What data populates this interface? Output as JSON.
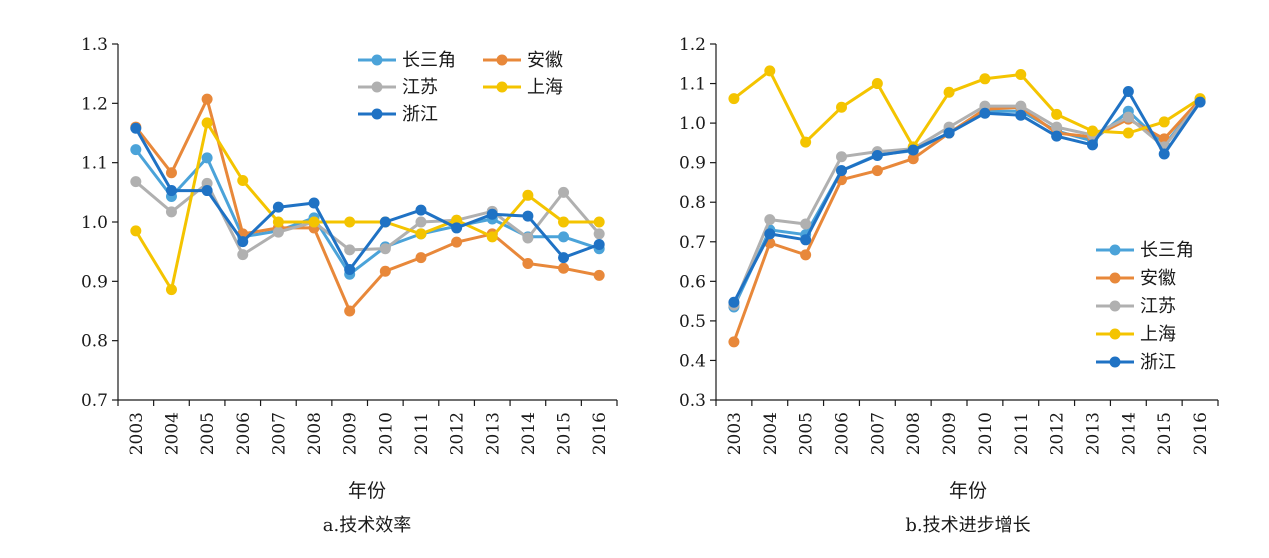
{
  "chart_data": [
    {
      "type": "line",
      "caption": "a.技术效率",
      "xlabel": "年份",
      "ylabel": "",
      "ylim": [
        0.7,
        1.3
      ],
      "yticks": [
        "0.7",
        "0.8",
        "0.9",
        "1.0",
        "1.1",
        "1.2",
        "1.3"
      ],
      "x": [
        "2003",
        "2004",
        "2005",
        "2006",
        "2007",
        "2008",
        "2009",
        "2010",
        "2011",
        "2012",
        "2013",
        "2014",
        "2015",
        "2016"
      ],
      "legend_position": "top-right",
      "series": [
        {
          "name": "长三角",
          "color": "#4ba3d9",
          "values": [
            1.122,
            1.043,
            1.108,
            0.975,
            0.985,
            1.007,
            0.912,
            0.958,
            0.98,
            0.993,
            1.005,
            0.975,
            0.975,
            0.955
          ]
        },
        {
          "name": "安徽",
          "color": "#e8883a",
          "values": [
            1.16,
            1.083,
            1.207,
            0.98,
            0.99,
            0.99,
            0.85,
            0.917,
            0.94,
            0.966,
            0.98,
            0.93,
            0.922,
            0.91
          ]
        },
        {
          "name": "江苏",
          "color": "#b0b0b0",
          "values": [
            1.068,
            1.017,
            1.065,
            0.945,
            0.983,
            1.0,
            0.953,
            0.955,
            1.0,
            1.003,
            1.018,
            0.973,
            1.05,
            0.98
          ]
        },
        {
          "name": "上海",
          "color": "#f4c400",
          "values": [
            0.985,
            0.886,
            1.167,
            1.07,
            1.0,
            1.0,
            1.0,
            1.0,
            0.98,
            1.003,
            0.975,
            1.045,
            1.0,
            1.0
          ]
        },
        {
          "name": "浙江",
          "color": "#1f72c4",
          "values": [
            1.158,
            1.053,
            1.053,
            0.967,
            1.025,
            1.032,
            0.92,
            1.0,
            1.02,
            0.99,
            1.013,
            1.01,
            0.94,
            0.962
          ]
        }
      ]
    },
    {
      "type": "line",
      "caption": "b.技术进步增长",
      "xlabel": "年份",
      "ylabel": "",
      "ylim": [
        0.3,
        1.2
      ],
      "yticks": [
        "0.3",
        "0.4",
        "0.5",
        "0.6",
        "0.7",
        "0.8",
        "0.9",
        "1.0",
        "1.1",
        "1.2"
      ],
      "x": [
        "2003",
        "2004",
        "2005",
        "2006",
        "2007",
        "2008",
        "2009",
        "2010",
        "2011",
        "2012",
        "2013",
        "2014",
        "2015",
        "2016"
      ],
      "legend_position": "bottom-right",
      "series": [
        {
          "name": "长三角",
          "color": "#4ba3d9",
          "values": [
            0.535,
            0.73,
            0.718,
            0.88,
            0.92,
            0.93,
            0.975,
            1.03,
            1.03,
            0.98,
            0.955,
            1.03,
            0.945,
            1.055
          ]
        },
        {
          "name": "安徽",
          "color": "#e8883a",
          "values": [
            0.447,
            0.697,
            0.667,
            0.857,
            0.88,
            0.91,
            0.975,
            1.035,
            1.04,
            0.975,
            0.965,
            1.01,
            0.96,
            1.06
          ]
        },
        {
          "name": "江苏",
          "color": "#b0b0b0",
          "values": [
            0.54,
            0.756,
            0.745,
            0.915,
            0.928,
            0.935,
            0.99,
            1.043,
            1.043,
            0.99,
            0.97,
            1.015,
            0.94,
            1.055
          ]
        },
        {
          "name": "上海",
          "color": "#f4c400",
          "values": [
            1.062,
            1.132,
            0.952,
            1.04,
            1.1,
            0.94,
            1.078,
            1.112,
            1.123,
            1.022,
            0.98,
            0.975,
            1.003,
            1.062
          ]
        },
        {
          "name": "浙江",
          "color": "#1f72c4",
          "values": [
            0.547,
            0.72,
            0.705,
            0.88,
            0.918,
            0.932,
            0.975,
            1.025,
            1.02,
            0.967,
            0.945,
            1.08,
            0.922,
            1.053
          ]
        }
      ]
    }
  ]
}
